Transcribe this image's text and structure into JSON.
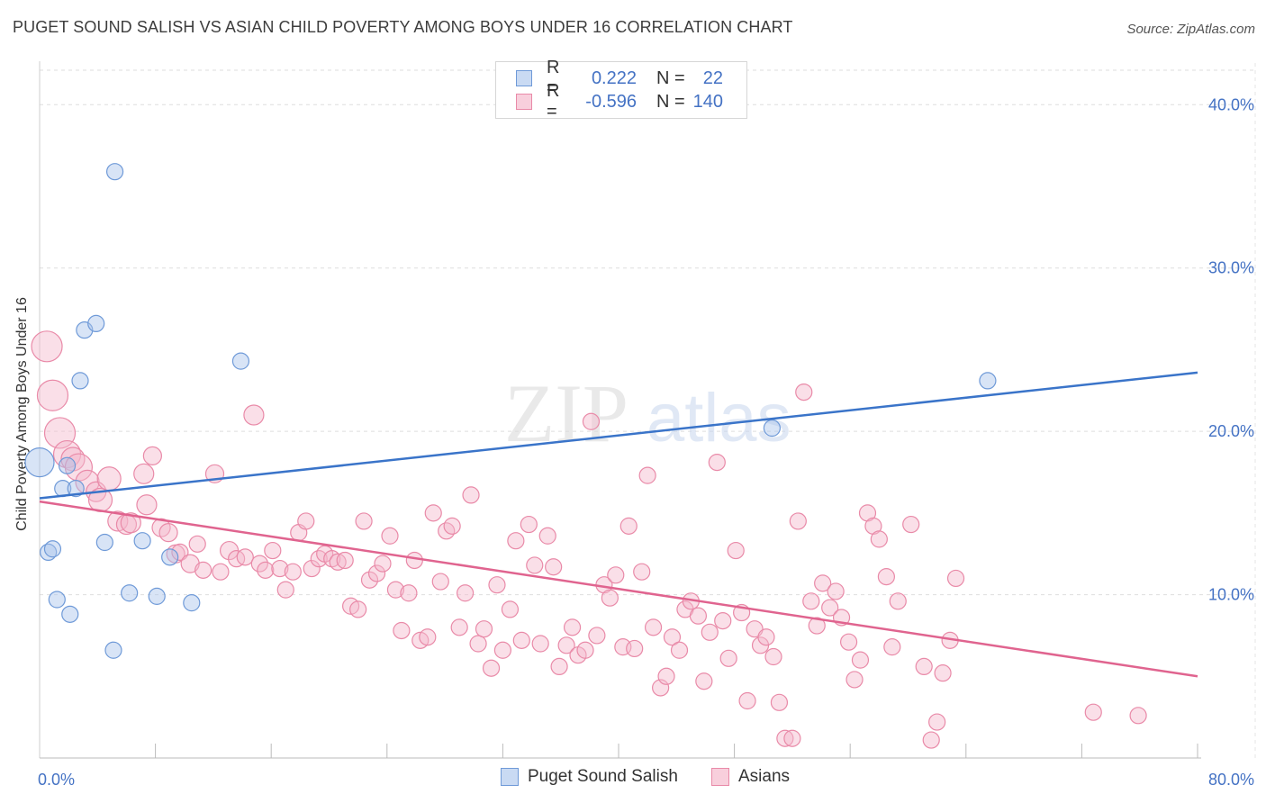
{
  "header": {
    "title": "PUGET SOUND SALISH VS ASIAN CHILD POVERTY AMONG BOYS UNDER 16 CORRELATION CHART",
    "source": "Source: ZipAtlas.com"
  },
  "watermark": {
    "zip": "ZIP",
    "atlas": "atlas"
  },
  "legend": {
    "rows": [
      {
        "r_label": "R =",
        "r_value": "0.222",
        "n_label": "N =",
        "n_value": "22",
        "color": "#a9c4ec",
        "stroke": "#6f9ad8"
      },
      {
        "r_label": "R =",
        "r_value": "-0.596",
        "n_label": "N =",
        "n_value": "140",
        "color": "#f5b8cb",
        "stroke": "#e98aa8"
      }
    ]
  },
  "bottom_legend": {
    "items": [
      {
        "label": "Puget Sound Salish",
        "color": "#a9c4ec",
        "stroke": "#6f9ad8"
      },
      {
        "label": "Asians",
        "color": "#f5b8cb",
        "stroke": "#e98aa8"
      }
    ]
  },
  "chart_data": {
    "type": "scatter",
    "title": "PUGET SOUND SALISH VS ASIAN CHILD POVERTY AMONG BOYS UNDER 16 CORRELATION CHART",
    "xlabel": "",
    "ylabel": "Child Poverty Among Boys Under 16",
    "xlim": [
      0,
      80
    ],
    "ylim": [
      0,
      42
    ],
    "x_tick_labels": [
      "0.0%",
      "80.0%"
    ],
    "y_ticks": [
      10,
      20,
      30,
      40
    ],
    "y_tick_labels": [
      "10.0%",
      "20.0%",
      "30.0%",
      "40.0%"
    ],
    "grid": true,
    "colors": {
      "blue": "#4472c4",
      "blue_line": "#3a74c9",
      "pink_line": "#e0648f"
    },
    "series": [
      {
        "name": "Puget Sound Salish",
        "color": "#a9c4ec",
        "stroke": "#6f9ad8",
        "trend": {
          "x": [
            0,
            80
          ],
          "y": [
            15.9,
            23.6
          ]
        },
        "points": [
          [
            0,
            18.1,
            16
          ],
          [
            0.6,
            12.6,
            9
          ],
          [
            0.9,
            12.8,
            9
          ],
          [
            1.2,
            9.7,
            9
          ],
          [
            2.1,
            8.8,
            9
          ],
          [
            1.6,
            16.5,
            9
          ],
          [
            1.9,
            17.9,
            9
          ],
          [
            2.5,
            16.5,
            9
          ],
          [
            2.8,
            23.1,
            9
          ],
          [
            3.1,
            26.2,
            9
          ],
          [
            3.9,
            26.6,
            9
          ],
          [
            4.5,
            13.2,
            9
          ],
          [
            5.2,
            35.9,
            9
          ],
          [
            5.1,
            6.6,
            9
          ],
          [
            6.2,
            10.1,
            9
          ],
          [
            7.1,
            13.3,
            9
          ],
          [
            8.1,
            9.9,
            9
          ],
          [
            9.0,
            12.3,
            9
          ],
          [
            10.5,
            9.5,
            9
          ],
          [
            13.9,
            24.3,
            9
          ],
          [
            50.6,
            20.2,
            9
          ],
          [
            65.5,
            23.1,
            9
          ]
        ]
      },
      {
        "name": "Asians",
        "color": "#f5b8cb",
        "stroke": "#e98aa8",
        "trend": {
          "x": [
            0,
            80
          ],
          "y": [
            15.7,
            5.0
          ]
        },
        "points": [
          [
            0.5,
            25.2,
            17
          ],
          [
            0.9,
            22.2,
            17
          ],
          [
            1.4,
            19.9,
            17
          ],
          [
            1.9,
            18.6,
            15
          ],
          [
            2.3,
            18.3,
            13
          ],
          [
            2.7,
            17.8,
            15
          ],
          [
            3.3,
            16.9,
            13
          ],
          [
            3.9,
            16.3,
            11
          ],
          [
            4.2,
            15.8,
            13
          ],
          [
            4.8,
            17.1,
            13
          ],
          [
            5.4,
            14.5,
            11
          ],
          [
            6.0,
            14.3,
            11
          ],
          [
            6.3,
            14.4,
            11
          ],
          [
            7.2,
            17.4,
            11
          ],
          [
            7.4,
            15.5,
            11
          ],
          [
            7.8,
            18.5,
            10
          ],
          [
            8.4,
            14.1,
            10
          ],
          [
            8.9,
            13.8,
            10
          ],
          [
            9.4,
            12.5,
            10
          ],
          [
            9.7,
            12.6,
            9
          ],
          [
            10.4,
            11.9,
            10
          ],
          [
            10.9,
            13.1,
            9
          ],
          [
            11.3,
            11.5,
            9
          ],
          [
            12.1,
            17.4,
            10
          ],
          [
            12.5,
            11.4,
            9
          ],
          [
            13.1,
            12.7,
            10
          ],
          [
            13.6,
            12.2,
            9
          ],
          [
            14.2,
            12.3,
            9
          ],
          [
            14.8,
            21.0,
            11
          ],
          [
            15.2,
            11.9,
            9
          ],
          [
            15.6,
            11.5,
            9
          ],
          [
            16.1,
            12.7,
            9
          ],
          [
            16.6,
            11.6,
            9
          ],
          [
            17.0,
            10.3,
            9
          ],
          [
            17.5,
            11.4,
            9
          ],
          [
            17.9,
            13.8,
            9
          ],
          [
            18.4,
            14.5,
            9
          ],
          [
            18.8,
            11.6,
            9
          ],
          [
            19.3,
            12.2,
            9
          ],
          [
            19.7,
            12.5,
            9
          ],
          [
            20.2,
            12.2,
            9
          ],
          [
            20.6,
            12.0,
            9
          ],
          [
            21.1,
            12.1,
            9
          ],
          [
            21.5,
            9.3,
            9
          ],
          [
            22.0,
            9.1,
            9
          ],
          [
            22.4,
            14.5,
            9
          ],
          [
            22.8,
            10.9,
            9
          ],
          [
            23.3,
            11.3,
            9
          ],
          [
            23.7,
            11.9,
            9
          ],
          [
            24.2,
            13.6,
            9
          ],
          [
            24.6,
            10.3,
            9
          ],
          [
            25.0,
            7.8,
            9
          ],
          [
            25.5,
            10.1,
            9
          ],
          [
            25.9,
            12.1,
            9
          ],
          [
            26.3,
            7.2,
            9
          ],
          [
            26.8,
            7.4,
            9
          ],
          [
            27.2,
            15.0,
            9
          ],
          [
            27.7,
            10.8,
            9
          ],
          [
            28.1,
            13.9,
            9
          ],
          [
            28.5,
            14.2,
            9
          ],
          [
            29.0,
            8.0,
            9
          ],
          [
            29.4,
            10.1,
            9
          ],
          [
            29.8,
            16.1,
            9
          ],
          [
            30.3,
            7.0,
            9
          ],
          [
            30.7,
            7.9,
            9
          ],
          [
            31.2,
            5.5,
            9
          ],
          [
            31.6,
            10.6,
            9
          ],
          [
            32.0,
            6.6,
            9
          ],
          [
            32.5,
            9.1,
            9
          ],
          [
            32.9,
            13.3,
            9
          ],
          [
            33.3,
            7.2,
            9
          ],
          [
            33.8,
            14.3,
            9
          ],
          [
            34.2,
            11.8,
            9
          ],
          [
            34.6,
            7.0,
            9
          ],
          [
            35.1,
            13.6,
            9
          ],
          [
            35.5,
            11.7,
            9
          ],
          [
            35.9,
            5.6,
            9
          ],
          [
            36.4,
            6.9,
            9
          ],
          [
            36.8,
            8.0,
            9
          ],
          [
            37.2,
            6.3,
            9
          ],
          [
            37.7,
            6.6,
            9
          ],
          [
            38.1,
            20.6,
            9
          ],
          [
            38.5,
            7.5,
            9
          ],
          [
            39.0,
            10.6,
            9
          ],
          [
            39.4,
            9.8,
            9
          ],
          [
            39.8,
            11.2,
            9
          ],
          [
            40.3,
            6.8,
            9
          ],
          [
            40.7,
            14.2,
            9
          ],
          [
            41.1,
            6.7,
            9
          ],
          [
            41.6,
            11.4,
            9
          ],
          [
            42.0,
            17.3,
            9
          ],
          [
            42.4,
            8.0,
            9
          ],
          [
            42.9,
            4.3,
            9
          ],
          [
            43.3,
            5.0,
            9
          ],
          [
            43.7,
            7.4,
            9
          ],
          [
            44.2,
            6.6,
            9
          ],
          [
            44.6,
            9.1,
            9
          ],
          [
            45.0,
            9.6,
            9
          ],
          [
            45.5,
            8.7,
            9
          ],
          [
            45.9,
            4.7,
            9
          ],
          [
            46.3,
            7.7,
            9
          ],
          [
            46.8,
            18.1,
            9
          ],
          [
            47.2,
            8.4,
            9
          ],
          [
            47.6,
            6.1,
            9
          ],
          [
            48.1,
            12.7,
            9
          ],
          [
            48.5,
            8.9,
            9
          ],
          [
            48.9,
            3.5,
            9
          ],
          [
            49.4,
            7.9,
            9
          ],
          [
            49.8,
            6.9,
            9
          ],
          [
            50.2,
            7.4,
            9
          ],
          [
            50.7,
            6.2,
            9
          ],
          [
            51.1,
            3.4,
            9
          ],
          [
            51.5,
            1.2,
            9
          ],
          [
            52.0,
            1.2,
            9
          ],
          [
            52.4,
            14.5,
            9
          ],
          [
            52.8,
            22.4,
            9
          ],
          [
            53.3,
            9.6,
            9
          ],
          [
            53.7,
            8.1,
            9
          ],
          [
            54.1,
            10.7,
            9
          ],
          [
            54.6,
            9.2,
            9
          ],
          [
            55.0,
            10.2,
            9
          ],
          [
            55.4,
            8.6,
            9
          ],
          [
            55.9,
            7.1,
            9
          ],
          [
            56.3,
            4.8,
            9
          ],
          [
            56.7,
            6.0,
            9
          ],
          [
            57.2,
            15.0,
            9
          ],
          [
            57.6,
            14.2,
            9
          ],
          [
            58.0,
            13.4,
            9
          ],
          [
            58.5,
            11.1,
            9
          ],
          [
            58.9,
            6.8,
            9
          ],
          [
            59.3,
            9.6,
            9
          ],
          [
            60.2,
            14.3,
            9
          ],
          [
            61.1,
            5.6,
            9
          ],
          [
            61.6,
            1.1,
            9
          ],
          [
            62.0,
            2.2,
            9
          ],
          [
            62.4,
            5.2,
            9
          ],
          [
            62.9,
            7.2,
            9
          ],
          [
            63.3,
            11.0,
            9
          ],
          [
            72.8,
            2.8,
            9
          ],
          [
            75.9,
            2.6,
            9
          ]
        ]
      }
    ]
  }
}
